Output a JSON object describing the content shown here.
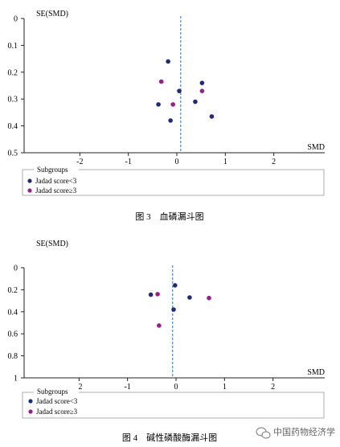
{
  "figures": [
    {
      "caption": "图 3　血磷漏斗图",
      "legend_title": "Subgroups",
      "legend_items": [
        "Jadad score<3",
        "Jadad score≥3"
      ]
    },
    {
      "caption": "图 4　碱性磷酸酶漏斗图",
      "legend_title": "Subgroups",
      "legend_items": [
        "Jadad score<3",
        "Jadad score≥3"
      ]
    }
  ],
  "watermark": "中国药物经济学",
  "colors": {
    "group1": "#1f2a7a",
    "group2": "#9b1c8c",
    "reference_line": "#2a6fb8",
    "axis": "#222222",
    "legend_border": "#999999"
  },
  "chart_data": [
    {
      "type": "scatter",
      "xlabel": "SMD",
      "ylabel": "SE(SMD)",
      "xlim": [
        -3,
        3.2
      ],
      "ylim": [
        0,
        0.5
      ],
      "y_reversed": true,
      "x_ticks": [
        -2,
        -1,
        0,
        1,
        2
      ],
      "x_tick_labels": [
        "-2",
        "-1",
        "0",
        "1",
        "2"
      ],
      "y_ticks": [
        0,
        0.1,
        0.2,
        0.3,
        0.4,
        0.5
      ],
      "y_tick_labels": [
        "0",
        "0.1",
        "0.2",
        "0.3",
        "0.4",
        "0.5"
      ],
      "reference_x": 0.08,
      "series": [
        {
          "name": "Jadad score<3",
          "points": [
            [
              -0.18,
              0.16
            ],
            [
              0.52,
              0.24
            ],
            [
              0.05,
              0.27
            ],
            [
              -0.38,
              0.32
            ],
            [
              0.38,
              0.31
            ],
            [
              -0.13,
              0.38
            ],
            [
              0.72,
              0.365
            ]
          ]
        },
        {
          "name": "Jadad score≥3",
          "points": [
            [
              -0.32,
              0.235
            ],
            [
              0.52,
              0.27
            ],
            [
              -0.08,
              0.32
            ]
          ]
        }
      ]
    },
    {
      "type": "scatter",
      "xlabel": "SMD",
      "ylabel": "SE(SMD)",
      "xlim": [
        -3,
        3.2
      ],
      "ylim": [
        0,
        1
      ],
      "y_reversed": true,
      "x_ticks": [
        -2,
        -1,
        0,
        1,
        2
      ],
      "x_tick_labels": [
        "-2",
        "-1",
        "0",
        "1",
        "2"
      ],
      "y_ticks": [
        0,
        0.2,
        0.4,
        0.6,
        0.8,
        1
      ],
      "y_tick_labels": [
        "0",
        "0.2",
        "0.4",
        "0.6",
        "0.8",
        "1"
      ],
      "reference_x": -0.07,
      "series": [
        {
          "name": "Jadad score<3",
          "points": [
            [
              -0.02,
              0.16
            ],
            [
              -0.52,
              0.245
            ],
            [
              0.28,
              0.27
            ],
            [
              -0.05,
              0.38
            ]
          ]
        },
        {
          "name": "Jadad score≥3",
          "points": [
            [
              -0.38,
              0.24
            ],
            [
              0.68,
              0.275
            ],
            [
              -0.35,
              0.525
            ]
          ]
        }
      ]
    }
  ]
}
